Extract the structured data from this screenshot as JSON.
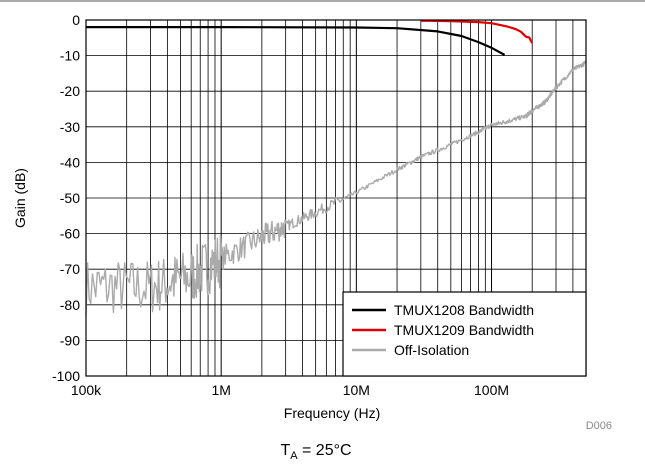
{
  "chart_data": {
    "type": "line",
    "x_scale": "log",
    "xlabel": "Frequency (Hz)",
    "ylabel": "Gain (dB)",
    "xlim": [
      100000,
      500000000
    ],
    "ylim": [
      -100,
      0
    ],
    "x_ticks": [
      {
        "value": 100000,
        "label": "100k"
      },
      {
        "value": 1000000,
        "label": "1M"
      },
      {
        "value": 10000000,
        "label": "10M"
      },
      {
        "value": 100000000,
        "label": "100M"
      }
    ],
    "y_ticks": [
      0,
      -10,
      -20,
      -30,
      -40,
      -50,
      -60,
      -70,
      -80,
      -90,
      -100
    ],
    "grid": true,
    "legend_position": "bottom-right",
    "series": [
      {
        "name": "TMUX1208 Bandwidth",
        "color": "#000000",
        "x": [
          100000,
          1000000,
          10000000,
          20000000,
          40000000,
          60000000,
          80000000,
          100000000,
          125000000
        ],
        "y": [
          -2.0,
          -2.0,
          -2.1,
          -2.3,
          -3.2,
          -4.5,
          -6.2,
          -7.8,
          -9.8
        ]
      },
      {
        "name": "TMUX1209 Bandwidth",
        "color": "#e00000",
        "x": [
          30000000,
          50000000,
          80000000,
          100000000,
          130000000,
          150000000,
          165000000,
          180000000,
          190000000,
          200000000
        ],
        "y": [
          -0.2,
          -0.3,
          -0.6,
          -0.9,
          -1.8,
          -2.5,
          -3.3,
          -4.7,
          -4.9,
          -6.5
        ]
      },
      {
        "name": "Off-Isolation",
        "color": "#aaaaaa",
        "x": [
          100000,
          300000,
          600000,
          1000000,
          2000000,
          3000000,
          5000000,
          10000000,
          20000000,
          30000000,
          50000000,
          80000000,
          100000000,
          130000000,
          180000000,
          200000000,
          250000000,
          300000000,
          400000000,
          500000000
        ],
        "y": [
          -75,
          -75,
          -72,
          -67,
          -61,
          -58,
          -54,
          -48.5,
          -42,
          -38.5,
          -35,
          -31.5,
          -29.5,
          -28.5,
          -27,
          -25.5,
          -23,
          -19,
          -14,
          -12
        ]
      }
    ]
  },
  "figure_id": "D006",
  "caption": {
    "main": "T",
    "sub": "A",
    "rest": " = 25°C"
  }
}
